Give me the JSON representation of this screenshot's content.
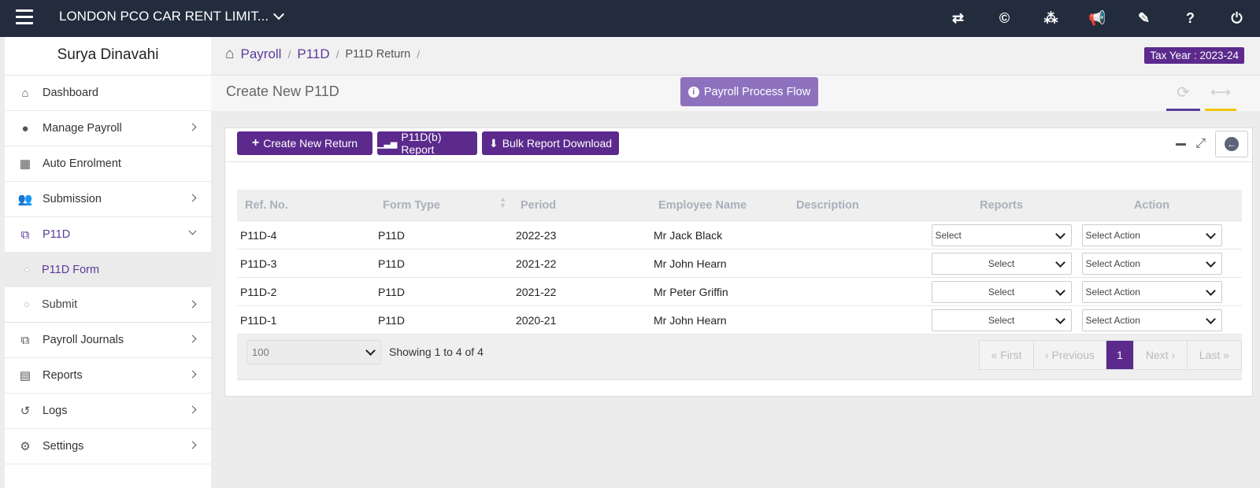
{
  "topbar": {
    "company": "LONDON PCO CAR RENT LIMIT...",
    "icons": [
      "switch-icon",
      "copyright-icon",
      "cubes-icon",
      "megaphone-icon",
      "ticket-icon",
      "help-icon",
      "power-icon"
    ]
  },
  "sidebar": {
    "user_name": "Surya Dinavahi",
    "items": {
      "dashboard": "Dashboard",
      "manage_payroll": "Manage Payroll",
      "auto_enrolment": "Auto Enrolment",
      "submission": "Submission",
      "p11d": "P11D",
      "p11d_form": "P11D Form",
      "submit": "Submit",
      "payroll_journals": "Payroll Journals",
      "reports": "Reports",
      "logs": "Logs",
      "settings": "Settings"
    }
  },
  "breadcrumb": {
    "payroll": "Payroll",
    "p11d": "P11D",
    "current": "P11D Return",
    "sep": "/"
  },
  "tax_year": "Tax Year : 2023-24",
  "page_title": "Create New P11D",
  "flow_button": "Payroll Process Flow",
  "toolbar": {
    "create": "Create New Return",
    "p11db": "P11D(b) Report",
    "bulk": "Bulk Report Download"
  },
  "table": {
    "headers": {
      "ref": "Ref. No.",
      "form_type": "Form Type",
      "period": "Period",
      "employee": "Employee Name",
      "description": "Description",
      "reports": "Reports",
      "action": "Action"
    },
    "rows": [
      {
        "ref": "P11D-4",
        "form_type": "P11D",
        "period": "2022-23",
        "employee": "Mr Jack Black",
        "description": "",
        "reports": "Select",
        "action": "Select Action"
      },
      {
        "ref": "P11D-3",
        "form_type": "P11D",
        "period": "2021-22",
        "employee": "Mr John Hearn",
        "description": "",
        "reports": "Select",
        "action": "Select Action"
      },
      {
        "ref": "P11D-2",
        "form_type": "P11D",
        "period": "2021-22",
        "employee": "Mr Peter Griffin",
        "description": "",
        "reports": "Select",
        "action": "Select Action"
      },
      {
        "ref": "P11D-1",
        "form_type": "P11D",
        "period": "2020-21",
        "employee": "Mr John Hearn",
        "description": "",
        "reports": "Select",
        "action": "Select Action"
      }
    ]
  },
  "pagination": {
    "page_size": "100",
    "showing": "Showing 1 to 4 of 4",
    "first": "« First",
    "previous": "‹ Previous",
    "current": "1",
    "next": "Next ›",
    "last": "Last »"
  },
  "colors": {
    "accent": "#5b2a8c",
    "topbar": "#232c3d",
    "flow_button": "#8d71bf",
    "highlight_yellow": "#f2c500"
  }
}
